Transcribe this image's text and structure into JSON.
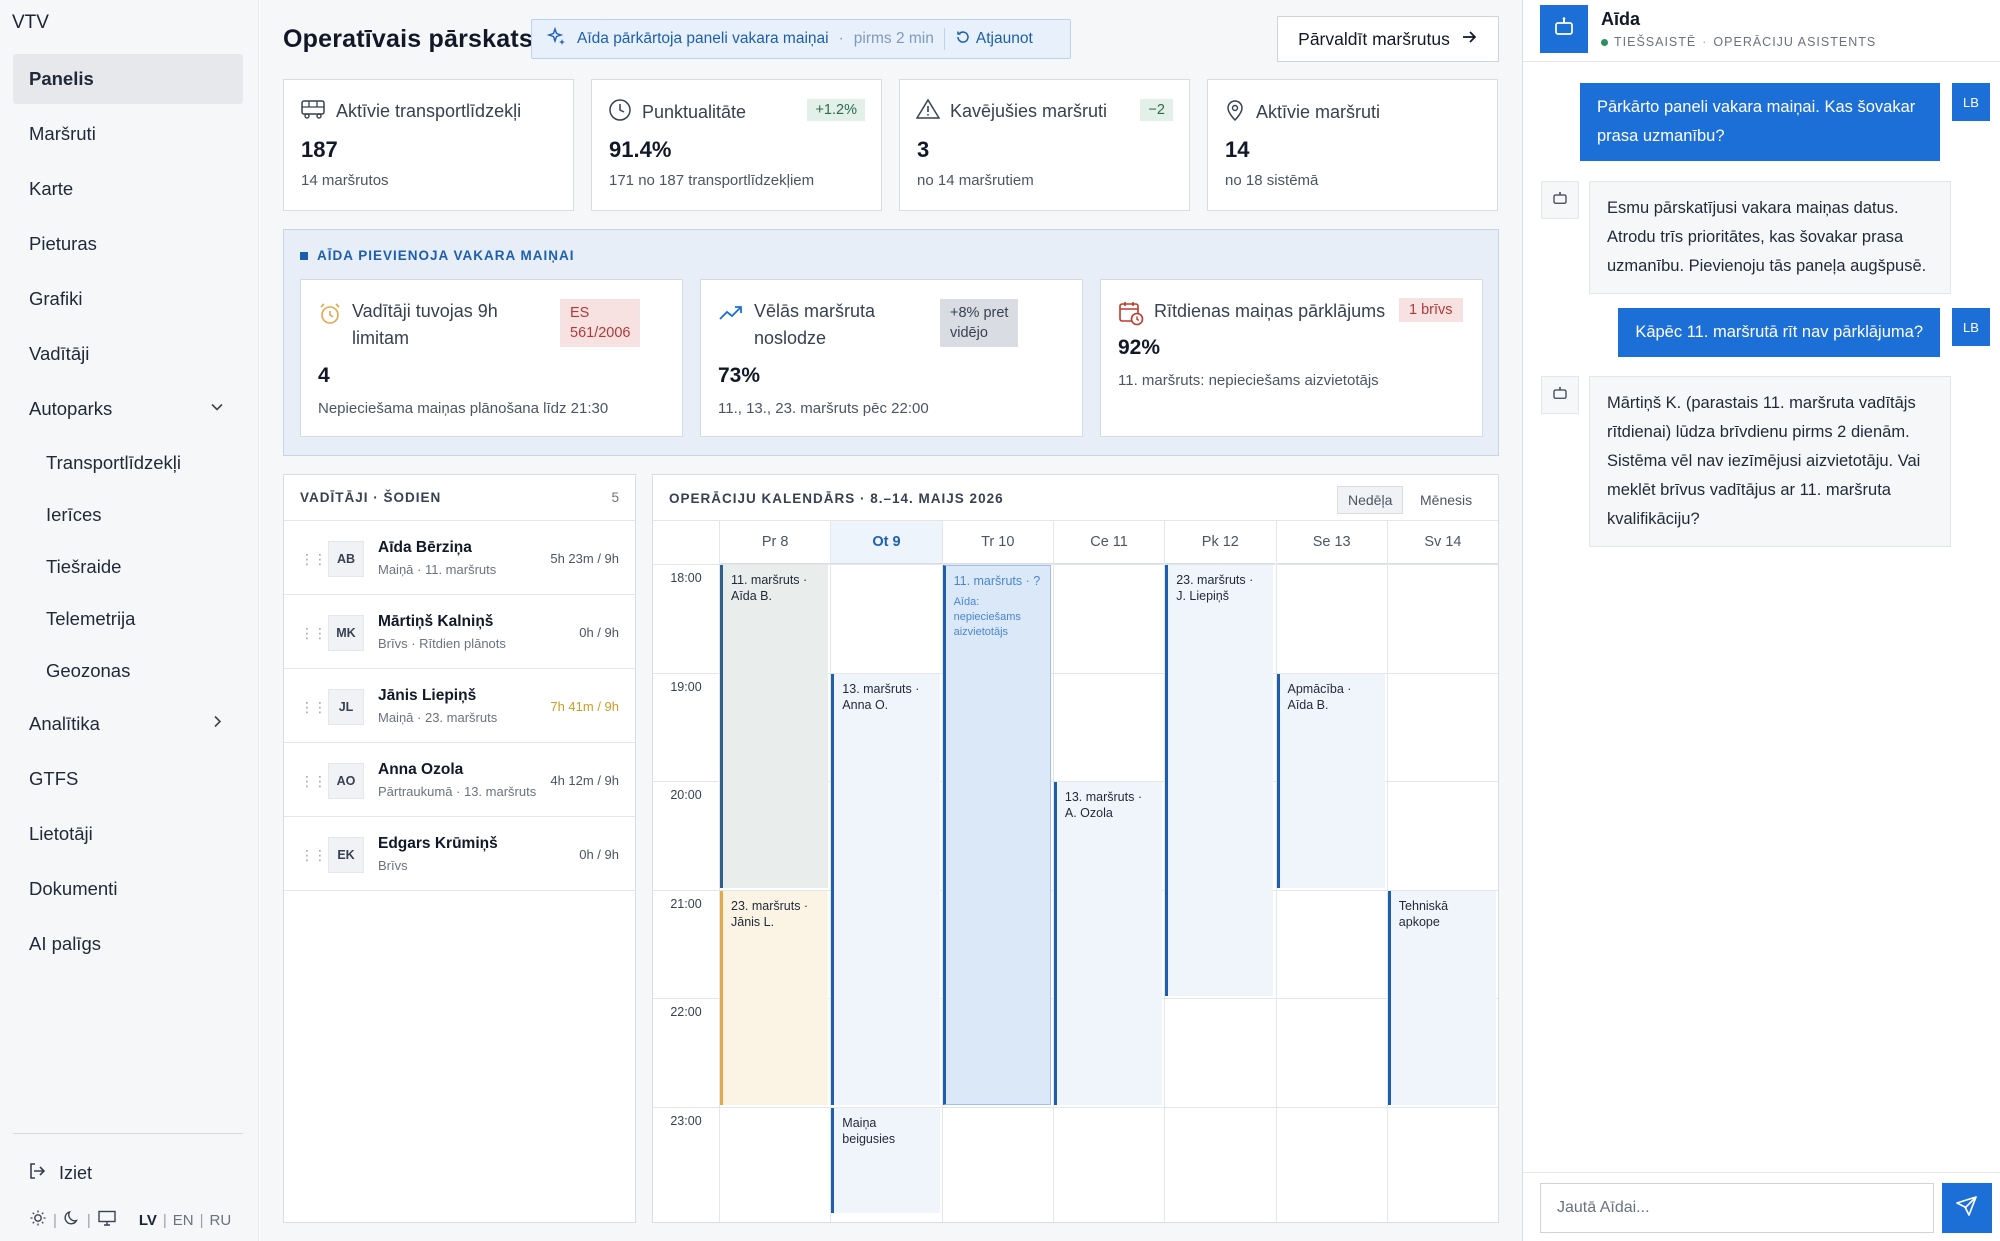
{
  "app": {
    "brand": "VTV"
  },
  "sidebar": {
    "items": [
      {
        "label": "Panelis",
        "active": true
      },
      {
        "label": "Maršruti"
      },
      {
        "label": "Karte"
      },
      {
        "label": "Pieturas"
      },
      {
        "label": "Grafiki"
      },
      {
        "label": "Vadītāji"
      },
      {
        "label": "Autoparks",
        "expanded": true
      },
      {
        "label": "Transportlīdzekļi",
        "sub": true
      },
      {
        "label": "Ierīces",
        "sub": true
      },
      {
        "label": "Tiešraide",
        "sub": true
      },
      {
        "label": "Telemetrija",
        "sub": true
      },
      {
        "label": "Geozonas",
        "sub": true
      },
      {
        "label": "Analītika",
        "collapsed": true
      },
      {
        "label": "GTFS"
      },
      {
        "label": "Lietotāji"
      },
      {
        "label": "Dokumenti"
      },
      {
        "label": "AI palīgs"
      }
    ],
    "logout": "Iziet",
    "languages": [
      "LV",
      "EN",
      "RU"
    ],
    "active_language": "LV"
  },
  "header": {
    "title": "Operatīvais pārskats",
    "banner": {
      "text": "Aīda pārkārtoja paneli vakara maiņai",
      "time": "pirms 2 min",
      "refresh": "Atjaunot"
    },
    "manage_button": "Pārvaldīt maršrutus"
  },
  "kpis": [
    {
      "icon": "bus-icon",
      "label": "Aktīvie transportlīdzekļi",
      "value": "187",
      "sub": "14 maršrutos",
      "delta": ""
    },
    {
      "icon": "clock-icon",
      "label": "Punktualitāte",
      "value": "91.4%",
      "sub": "171 no 187 transportlīdzekļiem",
      "delta": "+1.2%"
    },
    {
      "icon": "warning-icon",
      "label": "Kavējušies maršruti",
      "value": "3",
      "sub": "no 14 maršrutiem",
      "delta": "−2"
    },
    {
      "icon": "pin-icon",
      "label": "Aktīvie maršruti",
      "value": "14",
      "sub": "no 18 sistēmā",
      "delta": ""
    }
  ],
  "ai_panel": {
    "title": "AĪDA PIEVIENOJA VAKARA MAIŅAI",
    "cards": [
      {
        "icon": "alarm-icon",
        "label_line1": "Vadītāji tuvojas 9h",
        "label_line2": "limitam",
        "tag_line1": "ES",
        "tag_line2": "561/2006",
        "value": "4",
        "sub": "Nepieciešama maiņas plānošana līdz 21:30"
      },
      {
        "icon": "trend-up-icon",
        "label_line1": "Vēlās maršruta",
        "label_line2": "noslodze",
        "tag_line1": "+8% pret",
        "tag_line2": "vidējo",
        "value": "73%",
        "sub": "11., 13., 23. maršruts pēc 22:00"
      },
      {
        "icon": "calendar-clock-icon",
        "label_line1": "Rītdienas maiņas pārklājums",
        "label_line2": "",
        "tag_line1": "1 brīvs",
        "tag_line2": "",
        "value": "92%",
        "sub": "11. maršruts: nepieciešams aizvietotājs"
      }
    ],
    "colors": {
      "alarm": "#e3a84a",
      "trend": "#1d6fd8",
      "calendar": "#c0392b",
      "danger_tag_bg": "#f8e1e1",
      "danger_tag_fg": "#b03a3a"
    }
  },
  "drivers": {
    "title": "VADĪTĀJI · ŠODIEN",
    "count": "5",
    "rows": [
      {
        "initials": "AB",
        "name": "Aīda Bērziņa",
        "state": "Maiņā · 11. maršruts",
        "hours": "5h 23m / 9h",
        "warn": false
      },
      {
        "initials": "MK",
        "name": "Mārtiņš Kalniņš",
        "state": "Brīvs · Rītdien plānots",
        "hours": "0h / 9h",
        "warn": false
      },
      {
        "initials": "JL",
        "name": "Jānis Liepiņš",
        "state": "Maiņā · 23. maršruts",
        "hours": "7h 41m / 9h",
        "warn": true
      },
      {
        "initials": "AO",
        "name": "Anna Ozola",
        "state": "Pārtraukumā · 13. maršruts",
        "hours": "4h 12m / 9h",
        "warn": false
      },
      {
        "initials": "EK",
        "name": "Edgars Krūmiņš",
        "state": "Brīvs",
        "hours": "0h / 9h",
        "warn": false
      }
    ]
  },
  "calendar": {
    "title": "OPERĀCIJU KALENDĀRS · 8.–14. MAIJS 2026",
    "views": [
      "Nedēļa",
      "Mēnesis"
    ],
    "active_view": "Nedēļa",
    "days": [
      "Pr 8",
      "Ot 9",
      "Tr 10",
      "Ce 11",
      "Pk 12",
      "Se 13",
      "Sv 14"
    ],
    "today_index": 1,
    "hours": [
      "18:00",
      "19:00",
      "20:00",
      "21:00",
      "22:00",
      "23:00"
    ],
    "events": [
      {
        "day": 0,
        "start": 18.0,
        "end": 21.0,
        "style": "grey",
        "line1": "11. maršruts ·",
        "line2": "Aīda B.",
        "note": ""
      },
      {
        "day": 0,
        "start": 21.0,
        "end": 23.0,
        "style": "orange",
        "line1": "23. maršruts ·",
        "line2": "Jānis L.",
        "note": ""
      },
      {
        "day": 1,
        "start": 19.0,
        "end": 23.0,
        "style": "blue",
        "line1": "13. maršruts ·",
        "line2": "Anna O.",
        "note": ""
      },
      {
        "day": 1,
        "start": 23.0,
        "end": 24.0,
        "style": "blue",
        "line1": "Maiņa",
        "line2": "beigusies",
        "note": ""
      },
      {
        "day": 2,
        "start": 18.0,
        "end": 23.0,
        "style": "sel",
        "line1": "11. maršruts · ?",
        "line2": "",
        "note": "Aīda: nepieciešams aizvietotājs"
      },
      {
        "day": 3,
        "start": 20.0,
        "end": 23.0,
        "style": "blue",
        "line1": "13. maršruts ·",
        "line2": "A. Ozola",
        "note": ""
      },
      {
        "day": 4,
        "start": 18.0,
        "end": 22.0,
        "style": "blue",
        "line1": "23. maršruts ·",
        "line2": "J. Liepiņš",
        "note": ""
      },
      {
        "day": 5,
        "start": 19.0,
        "end": 21.0,
        "style": "blue",
        "line1": "Apmācība ·",
        "line2": "Aīda B.",
        "note": ""
      },
      {
        "day": 6,
        "start": 21.0,
        "end": 23.0,
        "style": "blue",
        "line1": "Tehniskā",
        "line2": "apkope",
        "note": ""
      }
    ]
  },
  "chat": {
    "bot_name": "Aīda",
    "status": "TIEŠSAISTĒ",
    "role": "OPERĀCIJU ASISTENTS",
    "user_initials": "LB",
    "messages": [
      {
        "from": "user",
        "text": "Pārkārto paneli vakara maiņai. Kas šovakar prasa uzmanību?"
      },
      {
        "from": "bot",
        "text": "Esmu pārskatījusi vakara maiņas datus. Atrodu trīs prioritātes, kas šovakar prasa uzmanību. Pievienoju tās paneļa augšpusē."
      },
      {
        "from": "user",
        "text": "Kāpēc 11. maršrutā rīt nav pārklājuma?"
      },
      {
        "from": "bot",
        "text": "Mārtiņš K. (parastais 11. maršruta vadītājs rītdienai) lūdza brīvdienu pirms 2 dienām. Sistēma vēl nav iezīmējusi aizvietotāju. Vai meklēt brīvus vadītājus ar 11. maršruta kvalifikāciju?"
      }
    ],
    "input_placeholder": "Jautā Aīdai...",
    "accent": "#1d6fd8"
  }
}
